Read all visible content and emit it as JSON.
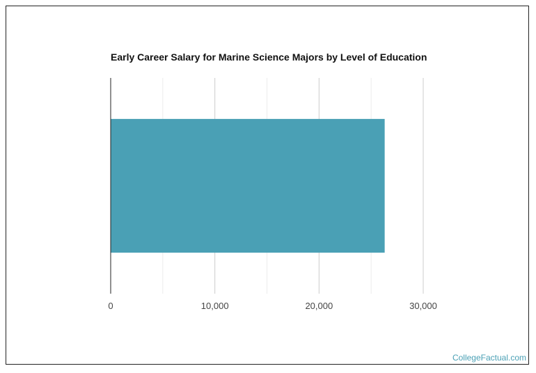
{
  "chart_data": {
    "type": "bar",
    "orientation": "horizontal",
    "title": "Early Career Salary for Marine Science Majors by Level of Education",
    "categories": [
      ""
    ],
    "values": [
      26300
    ],
    "xlim": [
      0,
      30000
    ],
    "xticks": [
      0,
      10000,
      20000,
      30000
    ],
    "xtick_labels": [
      "0",
      "10,000",
      "20,000",
      "30,000"
    ],
    "minor_gridlines": [
      5000,
      15000,
      25000
    ],
    "grid": true,
    "legend": "none",
    "bar_color": "#4aa0b5"
  },
  "branding": {
    "text": "CollegeFactual.com",
    "color": "#4aa0b5"
  }
}
